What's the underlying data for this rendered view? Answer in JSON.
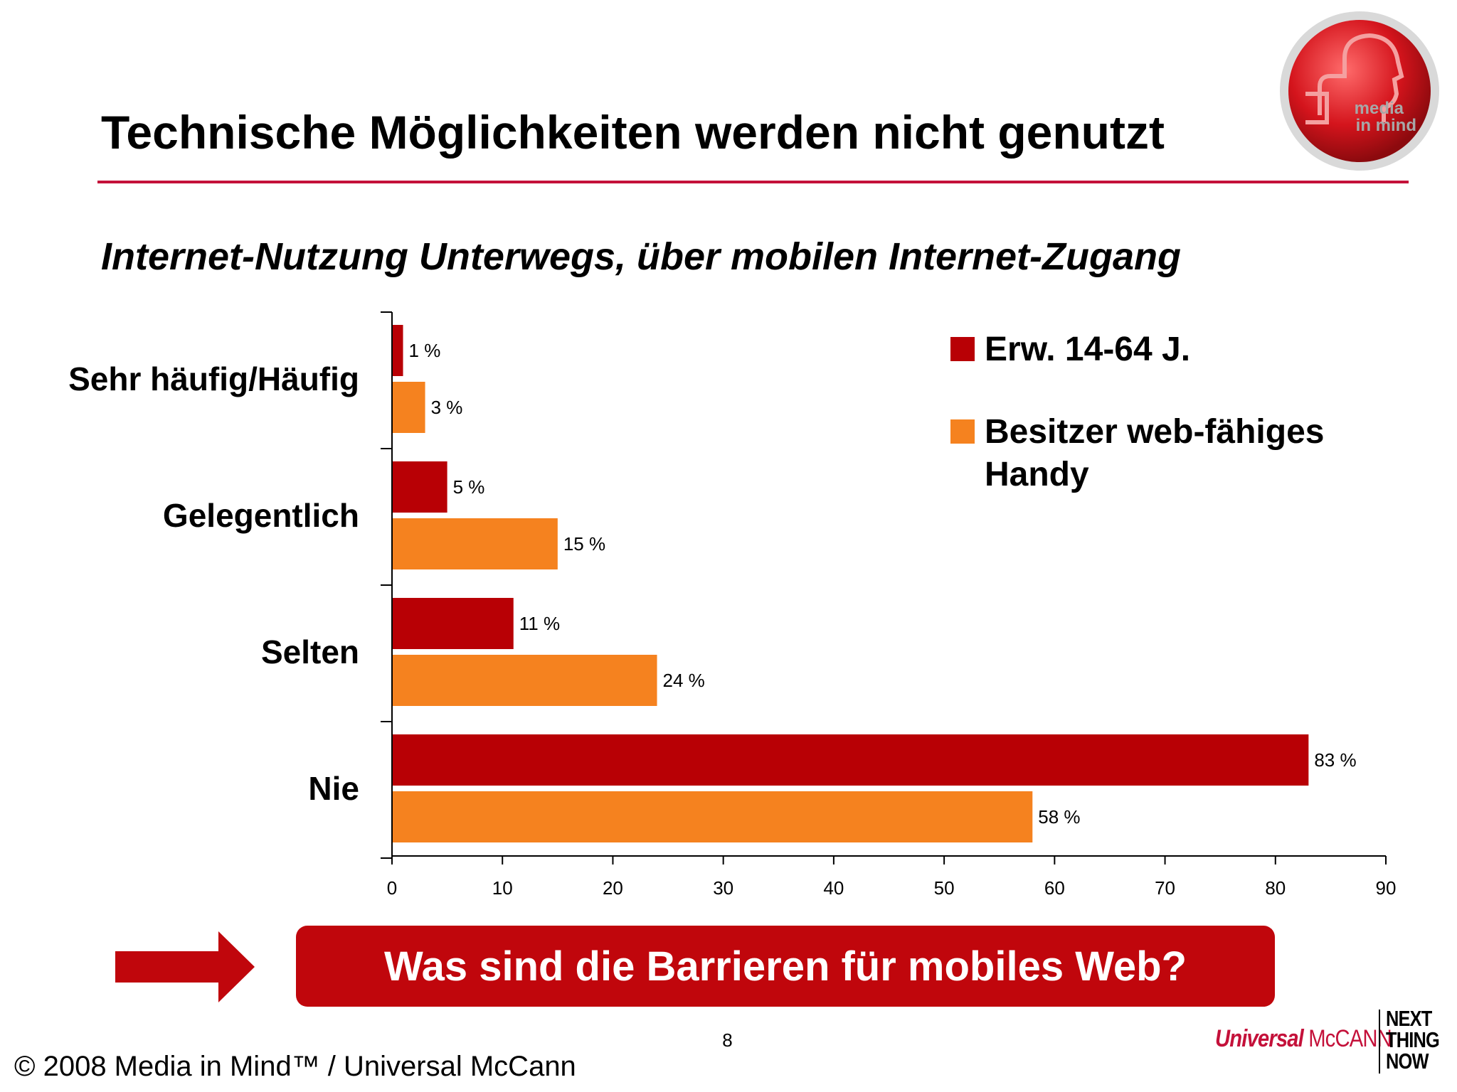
{
  "slide": {
    "title": "Technische Möglichkeiten werden nicht genutzt",
    "subtitle": "Internet-Nutzung Unterwegs, über mobilen Internet-Zugang",
    "callout": "Was sind die Barrieren für mobiles Web?",
    "page_number": "8",
    "copyright": "© 2008 Media in Mind™ / Universal McCann",
    "logo_text": [
      "media",
      "in mind"
    ],
    "brand": {
      "universal": "Universal",
      "mccann": "McCANN",
      "tagline": [
        "NEXT",
        "THING",
        "NOW"
      ]
    }
  },
  "colors": {
    "series1": "#b80005",
    "series2": "#f5821f",
    "rule": "#c4113a",
    "callout": "#c0060c"
  },
  "chart_data": {
    "type": "bar",
    "orientation": "horizontal",
    "categories": [
      "Sehr häufig/Häufig",
      "Gelegentlich",
      "Selten",
      "Nie"
    ],
    "series": [
      {
        "name": "Erw. 14-64 J.",
        "values": [
          1,
          5,
          11,
          83
        ],
        "labels": [
          "1 %",
          "5 %",
          "11 %",
          "83 %"
        ]
      },
      {
        "name": "Besitzer web-fähiges Handy",
        "values": [
          3,
          15,
          24,
          58
        ],
        "labels": [
          "3 %",
          "15 %",
          "24 %",
          "58 %"
        ]
      }
    ],
    "xlim": [
      0,
      90
    ],
    "xticks": [
      0,
      10,
      20,
      30,
      40,
      50,
      60,
      70,
      80,
      90
    ],
    "grid": false,
    "legend_position": "top-right"
  }
}
